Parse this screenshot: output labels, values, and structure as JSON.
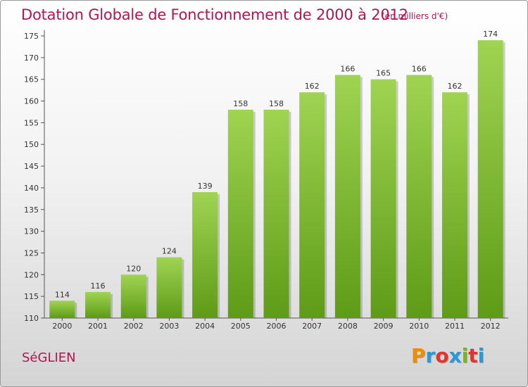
{
  "header": {
    "title": "Dotation Globale de Fonctionnement de 2000 à 2012",
    "subtitle": "(en milliers d'€)"
  },
  "footer": {
    "commune": "SéGLIEN",
    "brand": "Proxiti",
    "brand_colors": [
      "#f08c00",
      "#2a9ad6",
      "#e6322a",
      "#2a9ad6",
      "#7ab51d",
      "#e6322a",
      "#2a9ad6"
    ]
  },
  "colors": {
    "title": "#b3154f",
    "bar_light": "#9fd451",
    "bar_dark": "#5e9b17"
  },
  "chart_data": {
    "type": "bar",
    "title": "Dotation Globale de Fonctionnement de 2000 à 2012",
    "subtitle": "(en milliers d'€)",
    "categories": [
      "2000",
      "2001",
      "2002",
      "2003",
      "2004",
      "2005",
      "2006",
      "2007",
      "2008",
      "2009",
      "2010",
      "2011",
      "2012"
    ],
    "values": [
      114,
      116,
      120,
      124,
      139,
      158,
      158,
      162,
      166,
      165,
      166,
      162,
      174
    ],
    "ylim": [
      110,
      175
    ],
    "yticks": [
      110,
      115,
      120,
      125,
      130,
      135,
      140,
      145,
      150,
      155,
      160,
      165,
      170,
      175
    ],
    "grid": false,
    "data_labels": true
  }
}
